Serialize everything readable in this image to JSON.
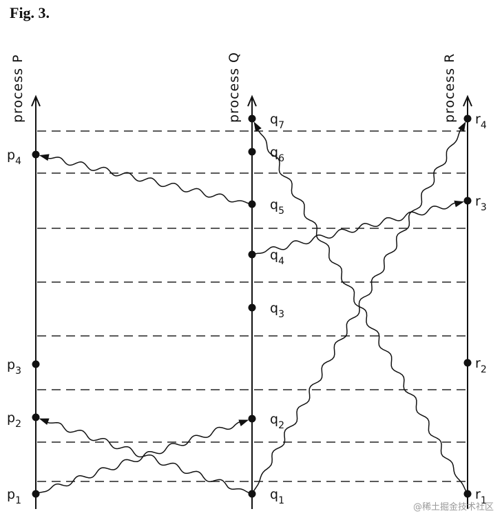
{
  "figure": {
    "title": "Fig. 3."
  },
  "processes": [
    {
      "id": "P",
      "label": "process P"
    },
    {
      "id": "Q",
      "label": "process Q"
    },
    {
      "id": "R",
      "label": "process R"
    }
  ],
  "events": {
    "P": [
      {
        "id": "p1",
        "letter": "p",
        "sub": "1"
      },
      {
        "id": "p2",
        "letter": "p",
        "sub": "2"
      },
      {
        "id": "p3",
        "letter": "p",
        "sub": "3"
      },
      {
        "id": "p4",
        "letter": "p",
        "sub": "4"
      }
    ],
    "Q": [
      {
        "id": "q1",
        "letter": "q",
        "sub": "1"
      },
      {
        "id": "q2",
        "letter": "q",
        "sub": "2"
      },
      {
        "id": "q3",
        "letter": "q",
        "sub": "3"
      },
      {
        "id": "q4",
        "letter": "q",
        "sub": "4"
      },
      {
        "id": "q5",
        "letter": "q",
        "sub": "5"
      },
      {
        "id": "q6",
        "letter": "q",
        "sub": "6"
      },
      {
        "id": "q7",
        "letter": "q",
        "sub": "7"
      }
    ],
    "R": [
      {
        "id": "r1",
        "letter": "r",
        "sub": "1"
      },
      {
        "id": "r2",
        "letter": "r",
        "sub": "2"
      },
      {
        "id": "r3",
        "letter": "r",
        "sub": "3"
      },
      {
        "id": "r4",
        "letter": "r",
        "sub": "4"
      }
    ]
  },
  "messages": [
    {
      "from": "p1",
      "to": "q2"
    },
    {
      "from": "q1",
      "to": "p2"
    },
    {
      "from": "q1",
      "to": "r4"
    },
    {
      "from": "q4",
      "to": "r3"
    },
    {
      "from": "q5",
      "to": "p4"
    },
    {
      "from": "r1",
      "to": "q7"
    }
  ],
  "watermark": "@稀土掘金技术社区"
}
